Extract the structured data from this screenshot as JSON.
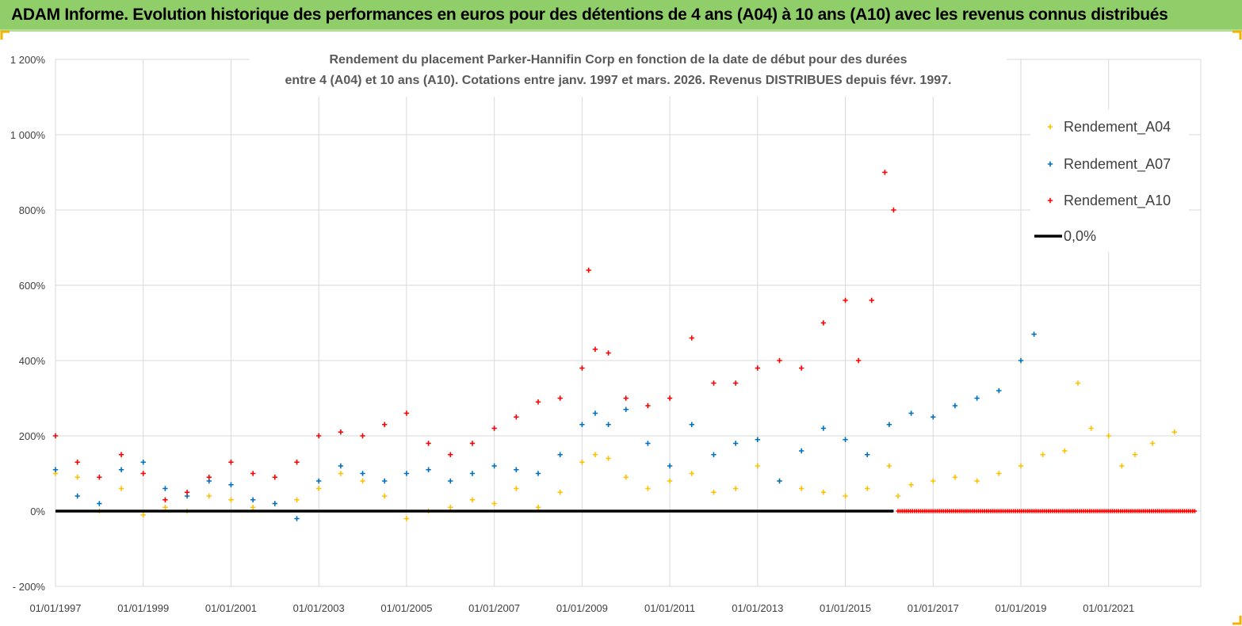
{
  "header": {
    "title": "ADAM Informe. Evolution historique des performances en euros pour des détentions de 4 ans (A04) à 10 ans (A10) avec les revenus connus distribués"
  },
  "chart_data": {
    "type": "scatter",
    "title_line1": "Rendement du placement Parker-Hannifin Corp en fonction de la date de début pour des durées",
    "title_line2": "entre 4 (A04) et 10 ans (A10).  Cotations entre janv. 1997 et mars. 2026. Revenus DISTRIBUES depuis févr. 1997.",
    "ylim": [
      -200,
      1200
    ],
    "yticks": [
      -200,
      0,
      200,
      400,
      600,
      800,
      1000,
      1200
    ],
    "ytick_labels": [
      "- 200%",
      "0%",
      "200%",
      "400%",
      "600%",
      "800%",
      "1 000%",
      "1 200%"
    ],
    "xlim": [
      1997.0,
      2023.1
    ],
    "xticks": [
      1997,
      1999,
      2001,
      2003,
      2005,
      2007,
      2009,
      2011,
      2013,
      2015,
      2017,
      2019,
      2021
    ],
    "xtick_labels": [
      "01/01/1997",
      "01/01/1999",
      "01/01/2001",
      "01/01/2003",
      "01/01/2005",
      "01/01/2007",
      "01/01/2009",
      "01/01/2011",
      "01/01/2013",
      "01/01/2015",
      "01/01/2017",
      "01/01/2019",
      "01/01/2021"
    ],
    "grid": true,
    "legend_position": "top-right",
    "series": [
      {
        "name": "Rendement_A04",
        "color": "#ffc000",
        "x": [
          1997.0,
          1997.5,
          1998.0,
          1998.5,
          1999.0,
          1999.5,
          2000.0,
          2000.5,
          2001.0,
          2001.5,
          2002.0,
          2002.5,
          2003.0,
          2003.5,
          2004.0,
          2004.5,
          2005.0,
          2005.5,
          2006.0,
          2006.5,
          2007.0,
          2007.5,
          2008.0,
          2008.5,
          2009.0,
          2009.3,
          2009.6,
          2010.0,
          2010.5,
          2011.0,
          2011.5,
          2012.0,
          2012.5,
          2013.0,
          2013.5,
          2014.0,
          2014.5,
          2015.0,
          2015.5,
          2016.0,
          2016.2,
          2016.5,
          2017.0,
          2017.5,
          2018.0,
          2018.5,
          2019.0,
          2019.5,
          2020.0,
          2020.3,
          2020.6,
          2021.0,
          2021.3,
          2021.6,
          2022.0,
          2022.5
        ],
        "y": [
          100,
          90,
          0,
          60,
          -10,
          10,
          0,
          40,
          30,
          10,
          20,
          30,
          60,
          100,
          80,
          40,
          -20,
          0,
          10,
          30,
          20,
          60,
          10,
          50,
          130,
          150,
          140,
          90,
          60,
          80,
          100,
          50,
          60,
          120,
          80,
          60,
          50,
          40,
          60,
          120,
          40,
          70,
          80,
          90,
          80,
          100,
          120,
          150,
          160,
          340,
          220,
          200,
          120,
          150,
          180,
          210
        ]
      },
      {
        "name": "Rendement_A07",
        "color": "#0070c0",
        "x": [
          1997.0,
          1997.5,
          1998.0,
          1998.5,
          1999.0,
          1999.5,
          2000.0,
          2000.5,
          2001.0,
          2001.5,
          2002.0,
          2002.5,
          2003.0,
          2003.5,
          2004.0,
          2004.5,
          2005.0,
          2005.5,
          2006.0,
          2006.5,
          2007.0,
          2007.5,
          2008.0,
          2008.5,
          2009.0,
          2009.3,
          2009.6,
          2010.0,
          2010.5,
          2011.0,
          2011.5,
          2012.0,
          2012.5,
          2013.0,
          2013.5,
          2014.0,
          2014.5,
          2015.0,
          2015.5,
          2016.0,
          2016.5,
          2017.0,
          2017.5,
          2018.0,
          2018.5,
          2019.0,
          2019.3
        ],
        "y": [
          110,
          40,
          20,
          110,
          130,
          60,
          40,
          80,
          70,
          30,
          20,
          -20,
          80,
          120,
          100,
          80,
          100,
          110,
          80,
          100,
          120,
          110,
          100,
          150,
          230,
          260,
          230,
          270,
          180,
          120,
          230,
          150,
          180,
          190,
          80,
          160,
          220,
          190,
          150,
          230,
          260,
          250,
          280,
          300,
          320,
          400,
          470
        ]
      },
      {
        "name": "Rendement_A10",
        "color": "#ff0000",
        "x": [
          1997.0,
          1997.5,
          1998.0,
          1998.5,
          1999.0,
          1999.5,
          2000.0,
          2000.5,
          2001.0,
          2001.5,
          2002.0,
          2002.5,
          2003.0,
          2003.5,
          2004.0,
          2004.5,
          2005.0,
          2005.5,
          2006.0,
          2006.5,
          2007.0,
          2007.5,
          2008.0,
          2008.5,
          2009.0,
          2009.15,
          2009.3,
          2009.6,
          2010.0,
          2010.5,
          2011.0,
          2011.5,
          2012.0,
          2012.5,
          2013.0,
          2013.5,
          2014.0,
          2014.5,
          2015.0,
          2015.3,
          2015.6,
          2015.9,
          2016.1
        ],
        "y": [
          200,
          130,
          90,
          150,
          100,
          30,
          50,
          90,
          130,
          100,
          90,
          130,
          200,
          210,
          200,
          230,
          260,
          180,
          150,
          180,
          220,
          250,
          290,
          300,
          380,
          640,
          430,
          420,
          300,
          280,
          300,
          460,
          340,
          340,
          380,
          400,
          380,
          500,
          560,
          400,
          560,
          900,
          800
        ]
      },
      {
        "name": "0,0%",
        "color": "#000000",
        "x": [
          1997.0,
          2016.1
        ],
        "y": [
          0,
          0
        ]
      }
    ],
    "zero_markers": {
      "color": "#ff0000",
      "x_start": 2016.2,
      "x_end": 2023.0,
      "y": 0
    }
  }
}
